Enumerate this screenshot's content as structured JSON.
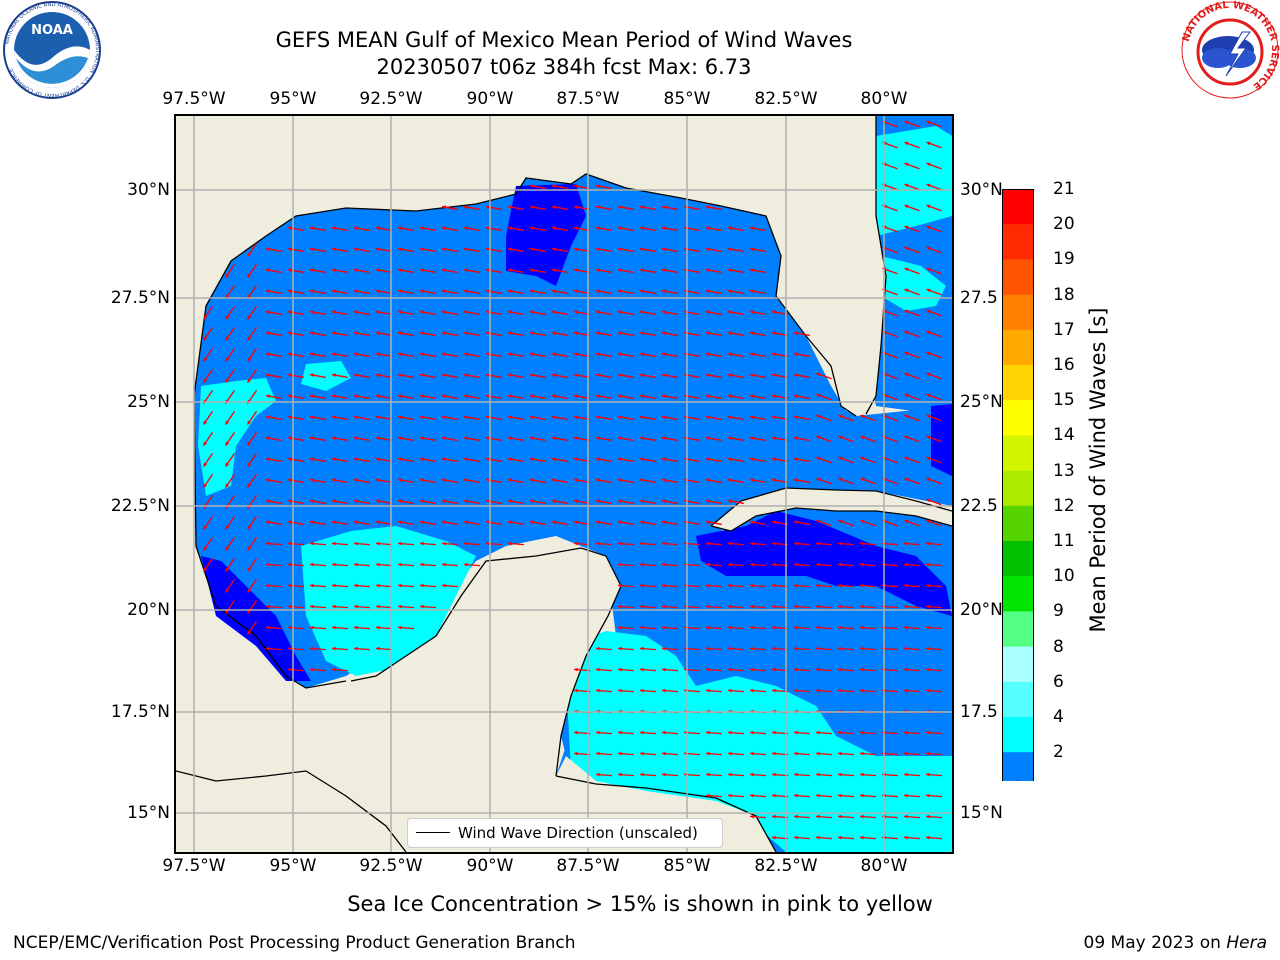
{
  "header": {
    "title_line1": "GEFS MEAN Gulf of Mexico Mean Period of Wind Waves",
    "title_line2": "20230507 t06z 384h fcst   Max: 6.73"
  },
  "logos": {
    "left": "NOAA",
    "left_ring_text": "NATIONAL OCEANIC AND ATMOSPHERIC ADMINISTRATION · U.S. DEPARTMENT OF COMMERCE",
    "right_ring_text": "NATIONAL WEATHER SERVICE"
  },
  "axes": {
    "lon_ticks": [
      "97.5°W",
      "95°W",
      "92.5°W",
      "90°W",
      "87.5°W",
      "85°W",
      "82.5°W",
      "80°W"
    ],
    "lat_ticks_left": [
      "30°N",
      "27.5°N",
      "25°N",
      "22.5°N",
      "20°N",
      "17.5°N",
      "15°N"
    ],
    "lat_ticks_right": [
      "30°N",
      "27.5",
      "25°N",
      "22.5",
      "20°N",
      "17.5",
      "15°N"
    ]
  },
  "legend": {
    "label": "Wind Wave Direction (unscaled)"
  },
  "colorbar": {
    "title": "Mean Period of Wind Waves [s]",
    "levels": [
      "21",
      "20",
      "19",
      "18",
      "17",
      "16",
      "15",
      "14",
      "13",
      "12",
      "11",
      "10",
      "9",
      "8",
      "6",
      "4",
      "2"
    ],
    "colors": [
      "#ff0000",
      "#ff2a00",
      "#ff5400",
      "#ff7f00",
      "#ffa900",
      "#ffd400",
      "#ffff00",
      "#d4f500",
      "#aaeb00",
      "#55d400",
      "#00c000",
      "#00e600",
      "#55ff85",
      "#aaffff",
      "#55ffff",
      "#00ffff",
      "#007fff"
    ],
    "extend_color": "#0000ff"
  },
  "footer": {
    "ice_note": "Sea Ice Concentration > 15% is shown in pink to yellow",
    "left": "NCEP/EMC/Verification Post Processing Product Generation Branch",
    "right_prefix": "09 May 2023 on ",
    "right_host": "Hera"
  },
  "map_colors": {
    "land": "#efedde",
    "period_2_4": "#007fff",
    "period_4_6": "#00ffff",
    "period_lt_2": "#0000ff",
    "arrows": "#ff0000",
    "grid": "#b0b0b0"
  }
}
